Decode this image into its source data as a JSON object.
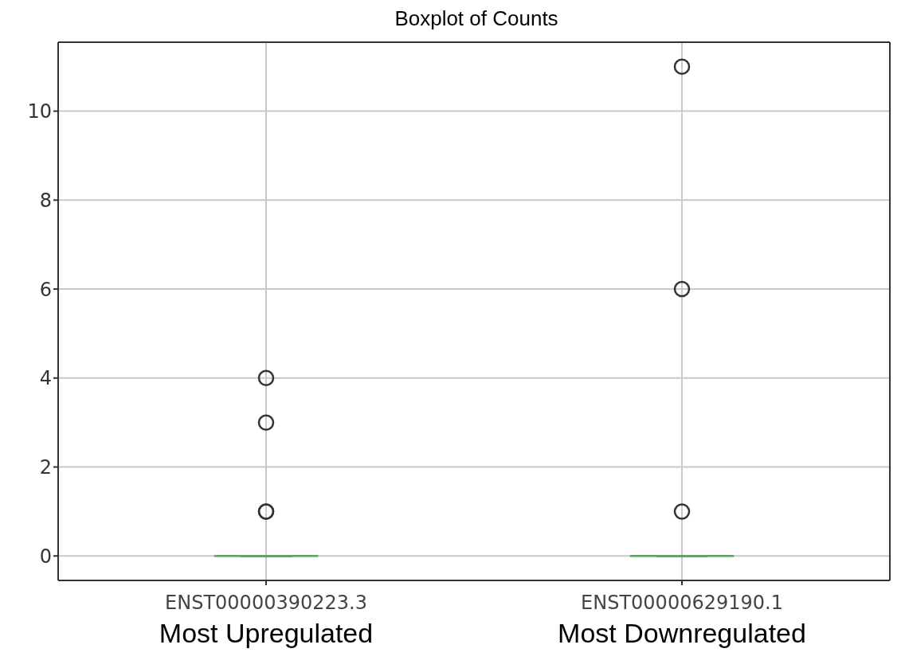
{
  "chart_data": {
    "type": "box",
    "title": "Boxplot of Counts",
    "categories": [
      "ENST00000390223.3",
      "ENST00000629190.1"
    ],
    "boxes": [
      {
        "low": 0,
        "q1": 0,
        "median": 0,
        "q3": 0,
        "high": 0,
        "outliers": [
          1,
          1,
          3,
          4
        ]
      },
      {
        "low": 0,
        "q1": 0,
        "median": 0,
        "q3": 0,
        "high": 0,
        "outliers": [
          1,
          6,
          11
        ]
      }
    ],
    "ylim": [
      -0.55,
      11.55
    ],
    "yticks": [
      0,
      2,
      4,
      6,
      8,
      10
    ],
    "grid": true,
    "marker": "circle",
    "annotations": [
      "Most Upregulated",
      "Most Downregulated"
    ]
  }
}
